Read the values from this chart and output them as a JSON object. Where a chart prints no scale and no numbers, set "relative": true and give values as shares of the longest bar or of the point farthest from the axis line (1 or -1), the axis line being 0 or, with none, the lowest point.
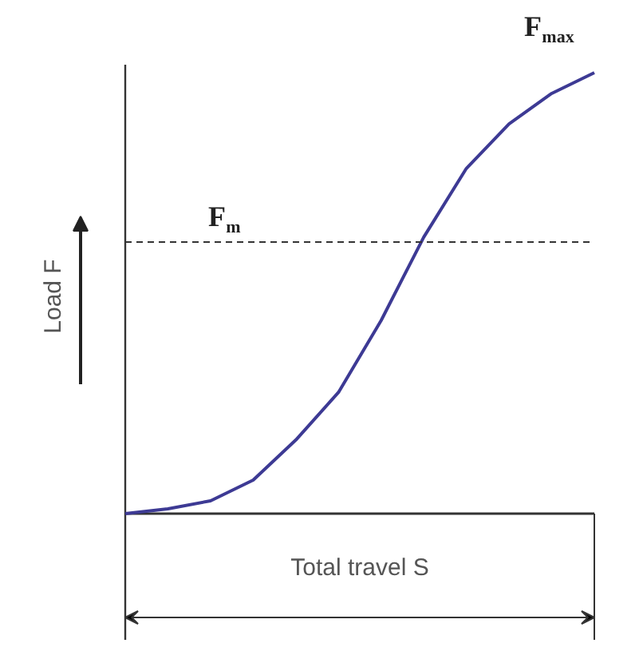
{
  "chart_data": {
    "type": "line",
    "relative": true,
    "xlabel": "Total travel S",
    "ylabel": "Load F",
    "categories": [
      null,
      null,
      null,
      null,
      null,
      null,
      null,
      null,
      null,
      null,
      null,
      null
    ],
    "series": [
      {
        "color": "#3d3a94",
        "values": [
          0,
          0.011,
          0.029,
          0.076,
          0.167,
          0.275,
          0.438,
          0.627,
          0.783,
          0.884,
          0.953,
          1
        ]
      }
    ],
    "ref_lines": [
      {
        "axis": "y",
        "value": 0.616,
        "label": "F$_{m}$",
        "color": "#333333",
        "line_style": "dashed"
      }
    ],
    "annotations": [
      "F$_{max}$"
    ]
  }
}
